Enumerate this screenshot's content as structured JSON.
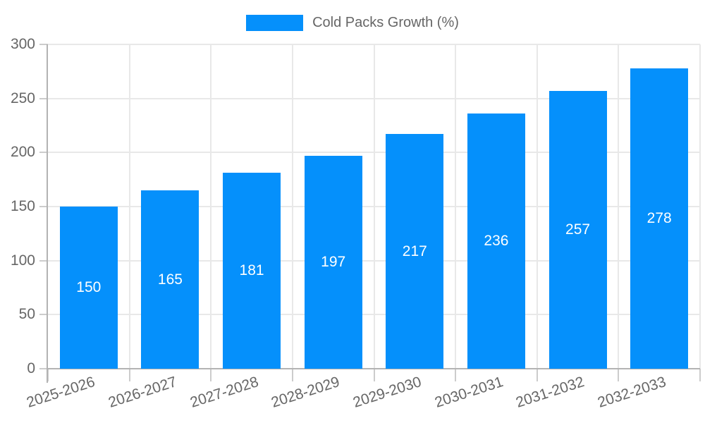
{
  "legend": {
    "label": "Cold Packs Growth (%)"
  },
  "chart_data": {
    "type": "bar",
    "title": "Cold Packs Growth (%)",
    "categories": [
      "2025-2026",
      "2026-2027",
      "2027-2028",
      "2028-2029",
      "2029-2030",
      "2030-2031",
      "2031-2032",
      "2032-2033"
    ],
    "values": [
      150,
      165,
      181,
      197,
      217,
      236,
      257,
      278
    ],
    "xlabel": "",
    "ylabel": "",
    "ylim": [
      0,
      300
    ],
    "yticks": [
      0,
      50,
      100,
      150,
      200,
      250,
      300
    ],
    "grid": true,
    "legend_position": "top-center",
    "value_labels": "inside-center-white",
    "colors": {
      "bar": "#0590FB",
      "grid": "#e8e8e8",
      "tick": "#cccccc",
      "axis": "#b3b3b3",
      "text": "#666666",
      "value_label": "#ffffff",
      "background": "#ffffff"
    }
  }
}
